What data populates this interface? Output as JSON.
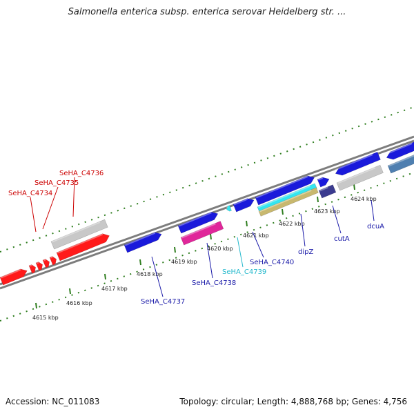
{
  "title": "Salmonella enterica subsp. enterica serovar Heidelberg str. ...",
  "footer": {
    "accession": "Accession: NC_011083",
    "summary": "Topology: circular; Length: 4,888,768 bp; Genes: 4,756"
  },
  "colors": {
    "backbone": "#7d7d7d",
    "tick": "#2e7d1e",
    "red": "#ff1a1a",
    "blue": "#1a1adb",
    "grey": "#c8c8c8",
    "magenta": "#e0279a",
    "cyan": "#33e5f0",
    "khaki": "#c8b86e",
    "navy": "#3b3b8f",
    "steel": "#4f7fb0"
  },
  "ticks": [
    {
      "label": "4615 kbp"
    },
    {
      "label": "4616 kbp"
    },
    {
      "label": "4617 kbp"
    },
    {
      "label": "4618 kbp"
    },
    {
      "label": "4619 kbp"
    },
    {
      "label": "4620 kbp"
    },
    {
      "label": "4621 kbp"
    },
    {
      "label": "4622 kbp"
    },
    {
      "label": "4623 kbp"
    },
    {
      "label": "4624 kbp"
    }
  ],
  "gene_labels": [
    {
      "text": "SeHA_C4736",
      "color": "#cc0000"
    },
    {
      "text": "SeHA_C4735",
      "color": "#cc0000"
    },
    {
      "text": "SeHA_C4734",
      "color": "#cc0000"
    },
    {
      "text": "SeHA_C4737",
      "color": "#1a1aa8"
    },
    {
      "text": "SeHA_C4738",
      "color": "#1a1aa8"
    },
    {
      "text": "SeHA_C4739",
      "color": "#22b8cc"
    },
    {
      "text": "SeHA_C4740",
      "color": "#1a1aa8"
    },
    {
      "text": "dipZ",
      "color": "#1a1aa8"
    },
    {
      "text": "cutA",
      "color": "#1a1aa8"
    },
    {
      "text": "dcuA",
      "color": "#1a1aa8"
    }
  ]
}
